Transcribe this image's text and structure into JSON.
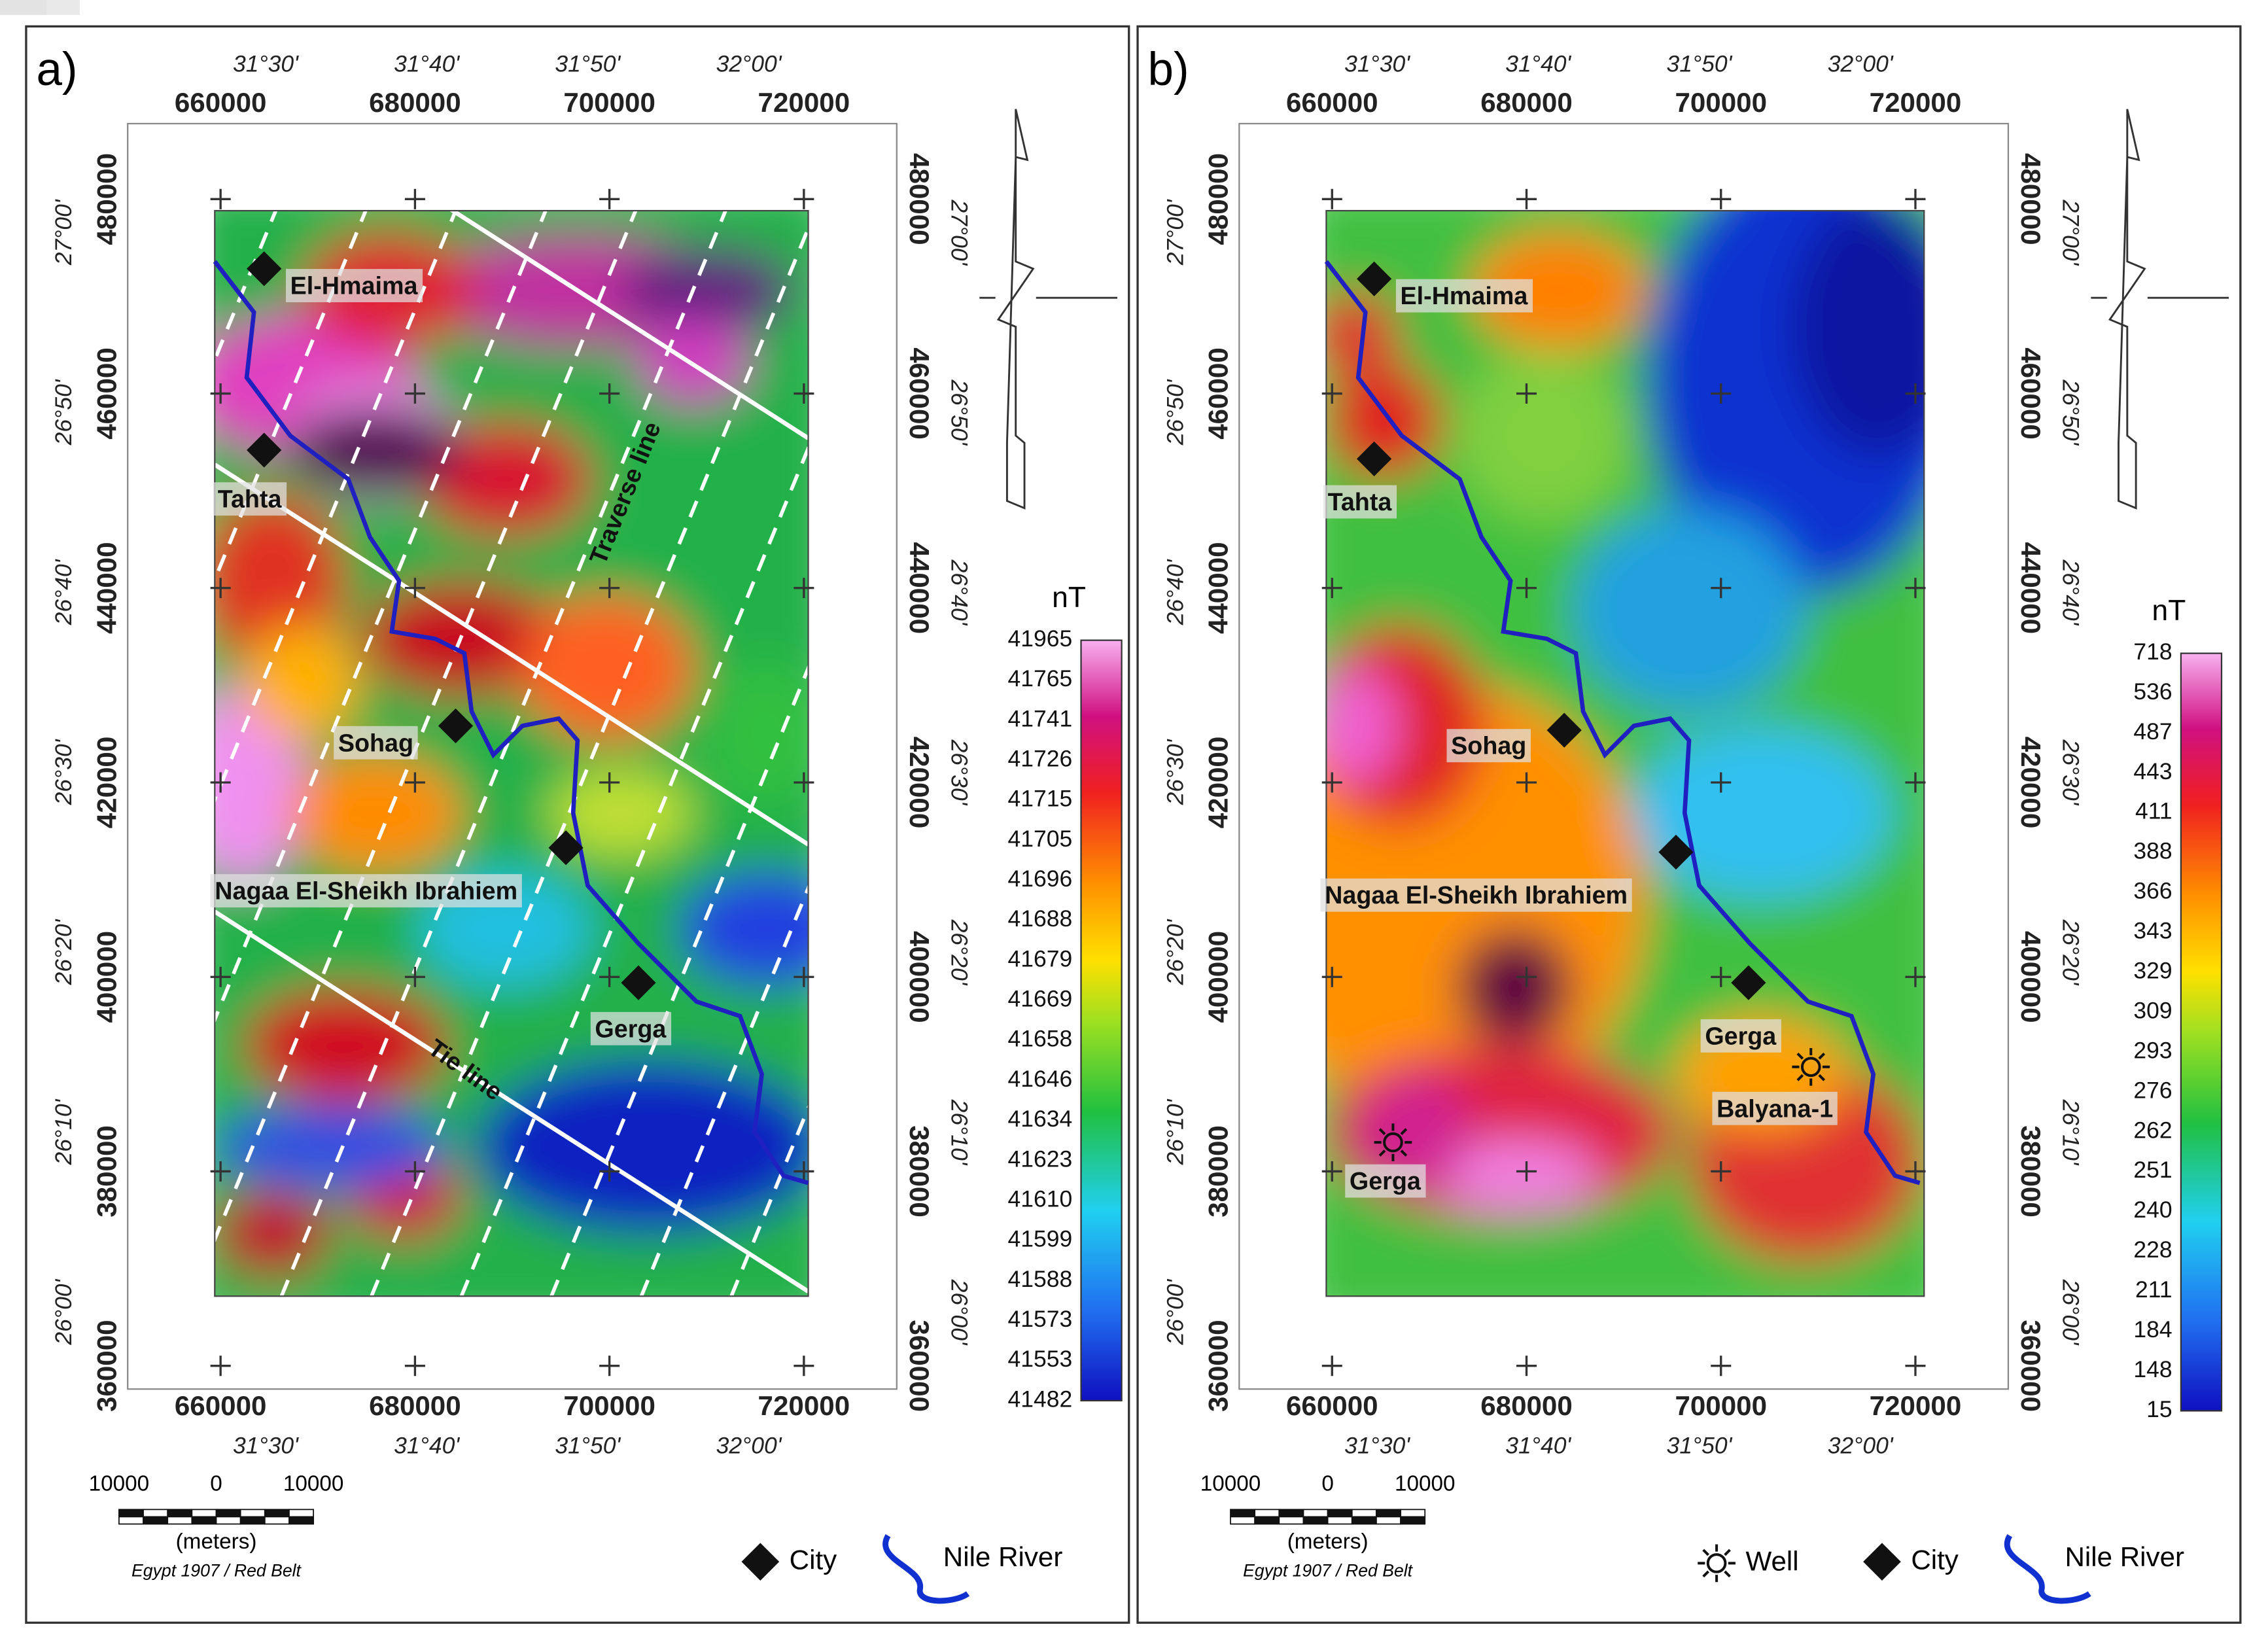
{
  "panels": [
    {
      "label": "a)",
      "eastings": [
        "660000",
        "680000",
        "700000",
        "720000"
      ],
      "longitudes": [
        "31°30'",
        "31°40'",
        "31°50'",
        "32°00'"
      ],
      "northings": [
        "480000",
        "460000",
        "440000",
        "420000",
        "400000",
        "380000",
        "360000"
      ],
      "latitudes": [
        "27°00'",
        "26°50'",
        "26°40'",
        "26°30'",
        "26°20'",
        "26°10'",
        "26°00'"
      ],
      "colorbar": {
        "unit": "nT",
        "labels": [
          "41965",
          "41765",
          "41741",
          "41726",
          "41715",
          "41705",
          "41696",
          "41688",
          "41679",
          "41669",
          "41658",
          "41646",
          "41634",
          "41623",
          "41610",
          "41599",
          "41588",
          "41573",
          "41553",
          "41482"
        ]
      },
      "cities": [
        "El-Hmaima",
        "Tahta",
        "Sohag",
        "Nagaa El-Sheikh Ibrahiem",
        "Gerga"
      ],
      "annotations": {
        "traverse": "Traverse line",
        "tie": "Tie line"
      },
      "scale_bar": {
        "labels": [
          "10000",
          "0",
          "10000"
        ],
        "unit": "(meters)",
        "datum": "Egypt 1907 / Red Belt"
      },
      "legend": {
        "city": "City",
        "river": "Nile River"
      }
    },
    {
      "label": "b)",
      "eastings": [
        "660000",
        "680000",
        "700000",
        "720000"
      ],
      "longitudes": [
        "31°30'",
        "31°40'",
        "31°50'",
        "32°00'"
      ],
      "northings": [
        "480000",
        "460000",
        "440000",
        "420000",
        "400000",
        "380000",
        "360000"
      ],
      "latitudes": [
        "27°00'",
        "26°50'",
        "26°40'",
        "26°30'",
        "26°20'",
        "26°10'",
        "26°00'"
      ],
      "colorbar": {
        "unit": "nT",
        "labels": [
          "718",
          "536",
          "487",
          "443",
          "411",
          "388",
          "366",
          "343",
          "329",
          "309",
          "293",
          "276",
          "262",
          "251",
          "240",
          "228",
          "211",
          "184",
          "148",
          "15"
        ]
      },
      "cities": [
        "El-Hmaima",
        "Tahta",
        "Sohag",
        "Nagaa El-Sheikh Ibrahiem",
        "Gerga"
      ],
      "wells": [
        "Balyana-1",
        "Gerga"
      ],
      "scale_bar": {
        "labels": [
          "10000",
          "0",
          "10000"
        ],
        "unit": "(meters)",
        "datum": "Egypt 1907 / Red Belt"
      },
      "legend": {
        "well": "Well",
        "city": "City",
        "river": "Nile River"
      }
    }
  ]
}
